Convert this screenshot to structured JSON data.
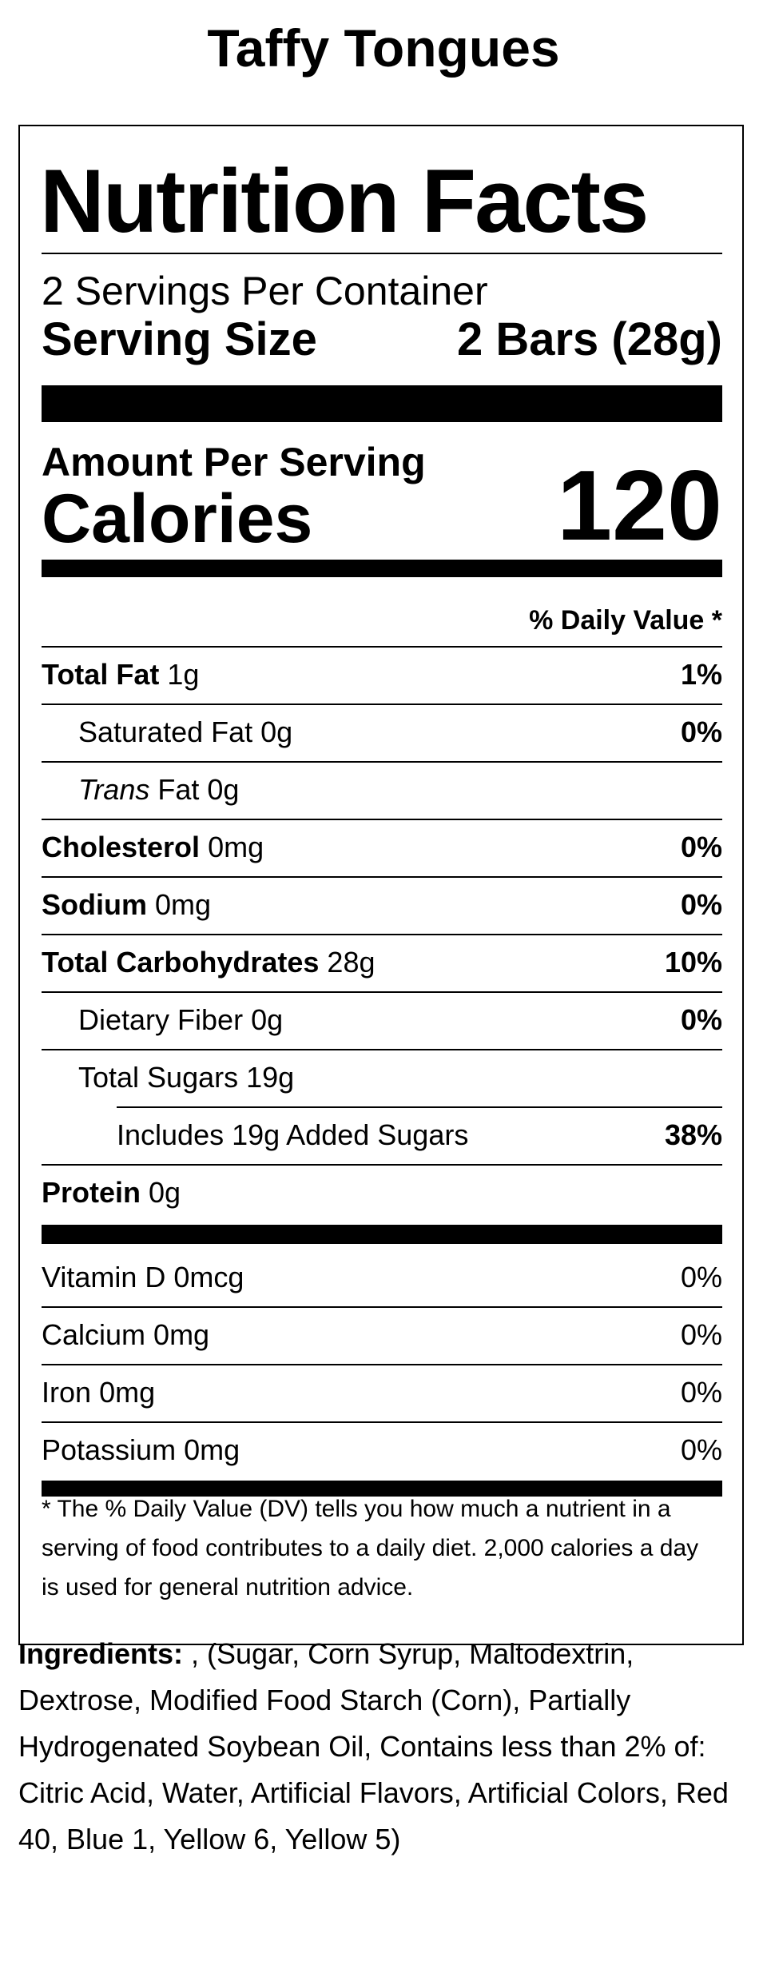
{
  "product_name": "Taffy Tongues",
  "label": {
    "title": "Nutrition Facts",
    "servings_per_container": "2 Servings Per Container",
    "serving_size_label": "Serving Size",
    "serving_size_value": "2 Bars (28g)",
    "amount_per_serving": "Amount Per Serving",
    "calories_label": "Calories",
    "calories_value": "120",
    "daily_value_header": "% Daily Value *",
    "nutrients": [
      {
        "name": "Total Fat",
        "amount": "1g",
        "dv": "1%"
      },
      {
        "name": "Saturated Fat",
        "amount": "0g",
        "dv": "0%"
      },
      {
        "name_prefix": "Trans",
        "name": "Fat",
        "amount": "0g",
        "dv": ""
      },
      {
        "name": "Cholesterol",
        "amount": "0mg",
        "dv": "0%"
      },
      {
        "name": "Sodium",
        "amount": "0mg",
        "dv": "0%"
      },
      {
        "name": "Total Carbohydrates",
        "amount": "28g",
        "dv": "10%"
      },
      {
        "name": "Dietary Fiber",
        "amount": "0g",
        "dv": "0%"
      },
      {
        "name": "Total Sugars",
        "amount": "19g",
        "dv": ""
      },
      {
        "name": "Includes 19g Added Sugars",
        "amount": "",
        "dv": "38%"
      },
      {
        "name": "Protein",
        "amount": "0g",
        "dv": ""
      }
    ],
    "vitamins": [
      {
        "name": "Vitamin D",
        "amount": "0mcg",
        "dv": "0%"
      },
      {
        "name": "Calcium",
        "amount": "0mg",
        "dv": "0%"
      },
      {
        "name": "Iron",
        "amount": "0mg",
        "dv": "0%"
      },
      {
        "name": "Potassium",
        "amount": "0mg",
        "dv": "0%"
      }
    ],
    "footnote": "* The % Daily Value (DV) tells you how much a nutrient in a serving of food contributes to a daily diet. 2,000 calories a day is used for general nutrition advice."
  },
  "ingredients": {
    "label": "Ingredients:",
    "text": " , (Sugar, Corn Syrup, Maltodextrin, Dextrose, Modified Food Starch (Corn), Partially Hydrogenated Soybean Oil, Contains less than 2% of: Citric Acid, Water, Artificial Flavors, Artificial Colors, Red 40, Blue 1, Yellow 6, Yellow 5)"
  }
}
